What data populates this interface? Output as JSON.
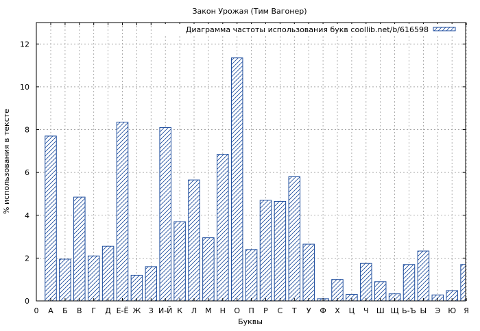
{
  "chart_data": {
    "type": "bar",
    "title": "Закон Урожая (Тим Вагонер)",
    "xlabel": "Буквы",
    "ylabel": "% использования в тексте",
    "legend": {
      "label": "Диаграмма частоты использования букв coollib.net/b/616598",
      "placement": "top-right"
    },
    "ylim": [
      0,
      13
    ],
    "yticks": [
      0,
      2,
      4,
      6,
      8,
      10,
      12
    ],
    "x_origin_label": "0",
    "grid": true,
    "categories": [
      "А",
      "Б",
      "В",
      "Г",
      "Д",
      "Е-Ё",
      "Ж",
      "З",
      "И-Й",
      "К",
      "Л",
      "М",
      "Н",
      "О",
      "П",
      "Р",
      "С",
      "Т",
      "У",
      "Ф",
      "Х",
      "Ц",
      "Ч",
      "Ш",
      "Щ",
      "Ь-Ъ",
      "Ы",
      "Э",
      "Ю",
      "Я"
    ],
    "values": [
      7.7,
      1.95,
      4.85,
      2.1,
      2.55,
      8.35,
      1.2,
      1.6,
      8.1,
      3.7,
      5.65,
      2.95,
      6.85,
      11.35,
      2.4,
      4.7,
      4.65,
      5.8,
      2.65,
      0.1,
      1.0,
      0.3,
      1.75,
      0.9,
      0.33,
      1.7,
      2.33,
      0.28,
      0.48,
      1.7
    ],
    "colors": {
      "bar_stroke": "#1a4a9c",
      "hatch": "#1a4a9c",
      "grid": "#999999"
    }
  }
}
